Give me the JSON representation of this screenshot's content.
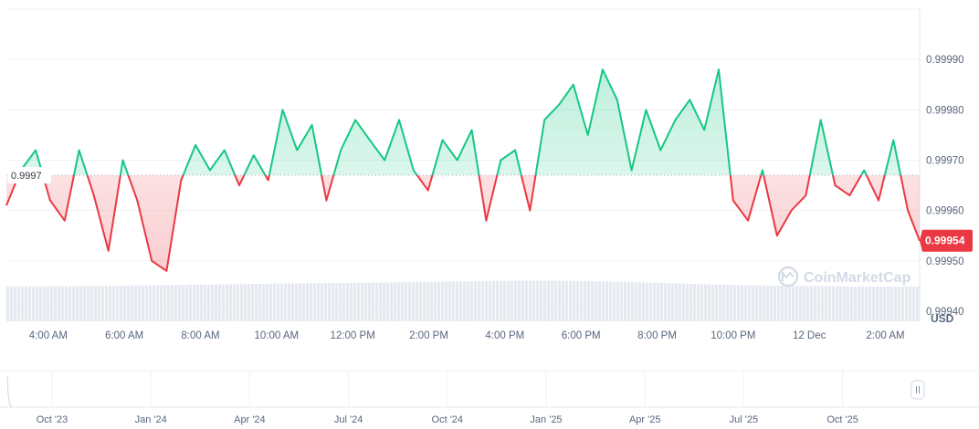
{
  "chart_data": {
    "type": "line",
    "currency_label": "USD",
    "baseline_value": 0.99967,
    "baseline_label": "0.9997",
    "current_value": 0.99954,
    "current_label": "0.99954",
    "y_ticks": [
      "0.99940",
      "0.99950",
      "0.99960",
      "0.99970",
      "0.99980",
      "0.99990"
    ],
    "y_tick_values": [
      0.9994,
      0.9995,
      0.9996,
      0.9997,
      0.9998,
      0.9999
    ],
    "ylim": [
      0.99938,
      1.0
    ],
    "x_ticks": [
      "4:00 AM",
      "6:00 AM",
      "8:00 AM",
      "10:00 AM",
      "12:00 PM",
      "2:00 PM",
      "4:00 PM",
      "6:00 PM",
      "8:00 PM",
      "10:00 PM",
      "12 Dec",
      "2:00 AM"
    ],
    "x_tick_hours": [
      2,
      4,
      6,
      8,
      10,
      12,
      14,
      16,
      18,
      20,
      22,
      24
    ],
    "x_range_hours": [
      0.9,
      24.9
    ],
    "series": [
      {
        "x_hours": [
          0.9,
          1.28,
          1.67,
          2.05,
          2.43,
          2.81,
          3.2,
          3.58,
          3.96,
          4.34,
          4.72,
          5.11,
          5.49,
          5.87,
          6.25,
          6.63,
          7.02,
          7.4,
          7.78,
          8.16,
          8.54,
          8.93,
          9.31,
          9.69,
          10.07,
          10.45,
          10.84,
          11.22,
          11.6,
          11.98,
          12.36,
          12.75,
          13.13,
          13.51,
          13.89,
          14.27,
          14.66,
          15.04,
          15.42,
          15.8,
          16.18,
          16.57,
          16.95,
          17.33,
          17.71,
          18.09,
          18.48,
          18.86,
          19.24,
          19.62,
          20.0,
          20.39,
          20.77,
          21.15,
          21.53,
          21.91,
          22.3,
          22.68,
          23.06,
          23.44,
          23.82,
          24.21,
          24.59,
          24.9
        ],
        "values": [
          0.99961,
          0.99968,
          0.99972,
          0.99962,
          0.99958,
          0.99972,
          0.99963,
          0.99952,
          0.9997,
          0.99962,
          0.9995,
          0.99948,
          0.99966,
          0.99973,
          0.99968,
          0.99972,
          0.99965,
          0.99971,
          0.99966,
          0.9998,
          0.99972,
          0.99977,
          0.99962,
          0.99972,
          0.99978,
          0.99974,
          0.9997,
          0.99978,
          0.99968,
          0.99964,
          0.99974,
          0.9997,
          0.99976,
          0.99958,
          0.9997,
          0.99972,
          0.9996,
          0.99978,
          0.99981,
          0.99985,
          0.99975,
          0.99988,
          0.99982,
          0.99968,
          0.9998,
          0.99972,
          0.99978,
          0.99982,
          0.99976,
          0.99988,
          0.99962,
          0.99958,
          0.99968,
          0.99955,
          0.9996,
          0.99963,
          0.99978,
          0.99965,
          0.99963,
          0.99968,
          0.99962,
          0.99974,
          0.9996,
          0.99954
        ]
      }
    ],
    "navigator": {
      "x_ticks": [
        "Oct '23",
        "Jan '24",
        "Apr '24",
        "Jul '24",
        "Oct '24",
        "Jan '25",
        "Apr '25",
        "Jul '25",
        "Oct '25"
      ]
    },
    "grid": true,
    "colors": {
      "up": "#16c784",
      "down": "#ea3943",
      "grid": "#eff2f5",
      "volume": "#e6eaf0"
    }
  },
  "watermark": "CoinMarketCap",
  "navigator_handle_icon": "pause-icon"
}
